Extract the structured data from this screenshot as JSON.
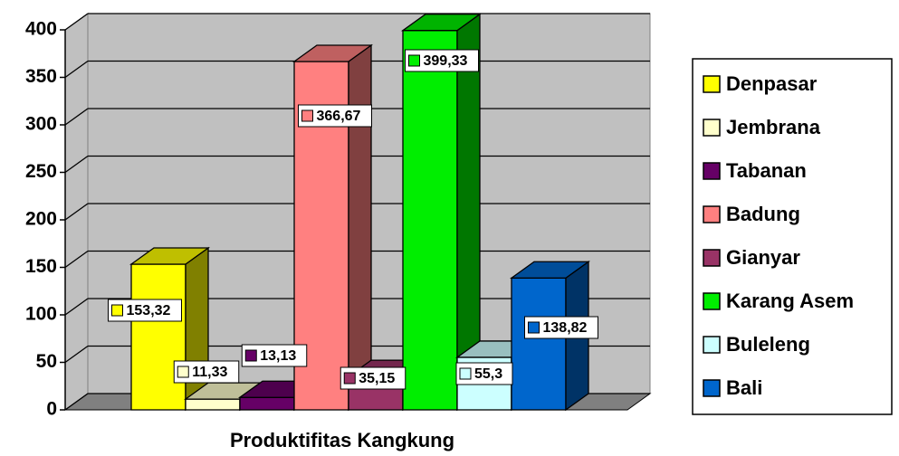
{
  "chart_data": {
    "type": "bar3d",
    "categories": [
      "Produktifitas Kangkung"
    ],
    "series": [
      {
        "name": "Denpasar",
        "color": "#ffff00",
        "values": [
          153.32
        ],
        "value_labels": [
          "153,32"
        ]
      },
      {
        "name": "Jembrana",
        "color": "#ffffcc",
        "values": [
          11.33
        ],
        "value_labels": [
          "11,33"
        ]
      },
      {
        "name": "Tabanan",
        "color": "#660066",
        "values": [
          13.13
        ],
        "value_labels": [
          "13,13"
        ]
      },
      {
        "name": "Badung",
        "color": "#ff8080",
        "values": [
          366.67
        ],
        "value_labels": [
          "366,67"
        ]
      },
      {
        "name": "Gianyar",
        "color": "#993366",
        "values": [
          35.15
        ],
        "value_labels": [
          "35,15"
        ]
      },
      {
        "name": "Karang Asem",
        "color": "#00ee00",
        "values": [
          399.33
        ],
        "value_labels": [
          "399,33"
        ]
      },
      {
        "name": "Buleleng",
        "color": "#ccffff",
        "values": [
          55.3
        ],
        "value_labels": [
          "55,3"
        ]
      },
      {
        "name": "Bali",
        "color": "#0066cc",
        "values": [
          138.82
        ],
        "value_labels": [
          "138,82"
        ]
      }
    ],
    "ylim": [
      0,
      400
    ],
    "yticks": [
      0,
      50,
      100,
      150,
      200,
      250,
      300,
      350,
      400
    ],
    "grid": true,
    "legend": "right"
  }
}
